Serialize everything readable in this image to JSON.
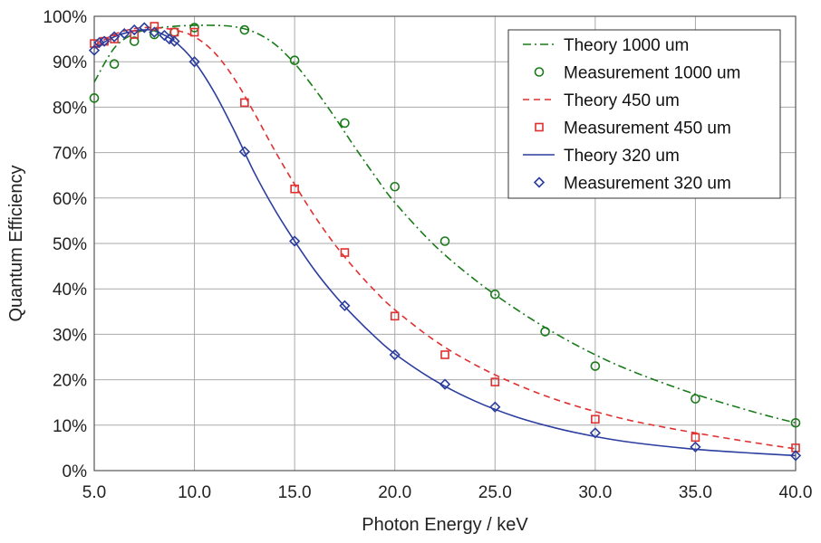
{
  "chart_data": {
    "type": "line",
    "title": "",
    "xlabel": "Photon Energy / keV",
    "ylabel": "Quantum Efficiency",
    "xlim": [
      5,
      40
    ],
    "ylim": [
      0,
      100
    ],
    "grid": true,
    "legend_position": "top-right",
    "x_ticks": [
      "5.0",
      "10.0",
      "15.0",
      "20.0",
      "25.0",
      "30.0",
      "35.0",
      "40.0"
    ],
    "y_ticks": [
      "0%",
      "10%",
      "20%",
      "30%",
      "40%",
      "50%",
      "60%",
      "70%",
      "80%",
      "90%",
      "100%"
    ],
    "series": [
      {
        "name": "Theory 1000 um",
        "kind": "line",
        "dash": "dashdot",
        "color": "#1a7a1a",
        "x": [
          5,
          6,
          7,
          8,
          9,
          10,
          11,
          12,
          13,
          14,
          15,
          16,
          17,
          18,
          19,
          20,
          22,
          24,
          26,
          28,
          30,
          32,
          35,
          38,
          40
        ],
        "y": [
          85.5,
          93,
          96.2,
          97.3,
          97.8,
          98,
          98,
          97.7,
          96.5,
          93.9,
          89.6,
          84,
          77.8,
          71.2,
          64.9,
          59,
          49.5,
          42,
          35.7,
          30.2,
          25.5,
          21.6,
          16.8,
          12.8,
          10.5
        ]
      },
      {
        "name": "Measurement 1000 um",
        "kind": "scatter",
        "marker": "circle",
        "color": "#1a7a1a",
        "x": [
          5.0,
          6.0,
          7.0,
          8.0,
          9.0,
          10.0,
          12.5,
          15.0,
          17.5,
          20.0,
          22.5,
          25.0,
          27.5,
          30.0,
          35.0,
          40.0
        ],
        "y": [
          82,
          89.5,
          94.5,
          96,
          96.5,
          97.5,
          97,
          90.3,
          76.5,
          62.5,
          50.5,
          38.8,
          30.6,
          23,
          15.8,
          10.5
        ]
      },
      {
        "name": "Theory 450 um",
        "kind": "line",
        "dash": "dashed",
        "color": "#e03030",
        "x": [
          5,
          6,
          7,
          8,
          9,
          10,
          11,
          12,
          13,
          14,
          15,
          16,
          17,
          18,
          19,
          20,
          22,
          24,
          26,
          28,
          30,
          32,
          35,
          38,
          40
        ],
        "y": [
          93.5,
          96,
          97.3,
          97.5,
          97,
          95.5,
          92,
          86.2,
          78.6,
          70.5,
          63,
          56,
          49.8,
          44.4,
          39.6,
          35.4,
          28.6,
          23.3,
          19.1,
          15.7,
          13,
          10.8,
          8.3,
          6.1,
          4.8
        ]
      },
      {
        "name": "Measurement 450 um",
        "kind": "scatter",
        "marker": "square",
        "color": "#e03030",
        "x": [
          5.0,
          5.5,
          6.0,
          7.0,
          8.0,
          9.0,
          10.0,
          12.5,
          15.0,
          17.5,
          20.0,
          22.5,
          25.0,
          30.0,
          35.0,
          40.0
        ],
        "y": [
          94,
          94.5,
          95,
          96,
          97.8,
          96.5,
          96.5,
          81,
          62,
          48,
          34,
          25.5,
          19.5,
          11.3,
          7.3,
          5
        ]
      },
      {
        "name": "Theory 320 um",
        "kind": "line",
        "dash": "solid",
        "color": "#2b3d9e",
        "x": [
          5,
          6,
          7,
          7.5,
          8,
          9,
          10,
          11,
          12,
          13,
          14,
          15,
          16,
          17,
          18,
          19,
          20,
          22,
          24,
          26,
          28,
          30,
          32,
          35,
          38,
          40
        ],
        "y": [
          93,
          95.5,
          96.8,
          97,
          96.8,
          94.5,
          90,
          83.2,
          74.7,
          65.5,
          57.5,
          50.5,
          44.1,
          38.6,
          33.8,
          29.5,
          25.7,
          19.8,
          15.3,
          11.9,
          9.4,
          7.5,
          6.1,
          4.7,
          3.8,
          3.3
        ]
      },
      {
        "name": "Measurement 320 um",
        "kind": "scatter",
        "marker": "diamond",
        "color": "#2b3d9e",
        "x": [
          5.0,
          5.25,
          5.5,
          6.0,
          6.5,
          7.0,
          7.5,
          8.0,
          8.5,
          8.75,
          9.0,
          10.0,
          12.5,
          15.0,
          17.5,
          20.0,
          22.5,
          25.0,
          30.0,
          35.0,
          40.0
        ],
        "y": [
          92.5,
          94.2,
          94.5,
          95.5,
          96.2,
          97,
          97.5,
          96.5,
          95.8,
          95,
          94.5,
          90,
          70.2,
          50.5,
          36.3,
          25.5,
          19,
          14,
          8.3,
          5.2,
          3.3
        ]
      }
    ]
  }
}
